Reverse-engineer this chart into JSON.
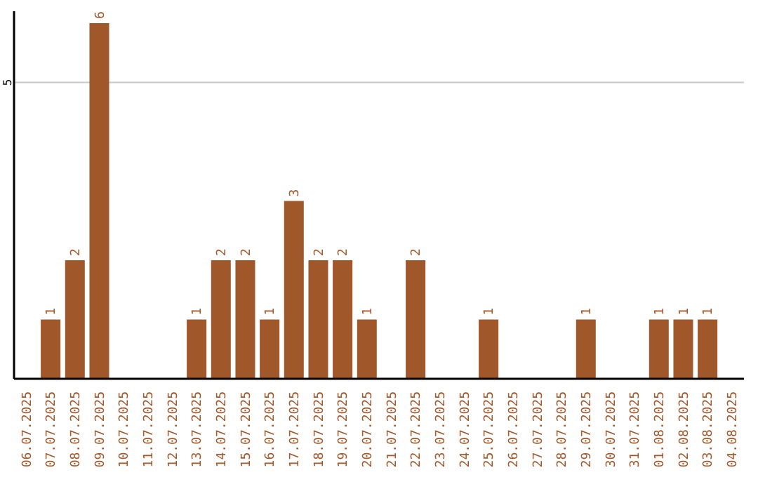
{
  "chart_data": {
    "type": "bar",
    "categories": [
      "06.07.2025",
      "07.07.2025",
      "08.07.2025",
      "09.07.2025",
      "10.07.2025",
      "11.07.2025",
      "12.07.2025",
      "13.07.2025",
      "14.07.2025",
      "15.07.2025",
      "16.07.2025",
      "17.07.2025",
      "18.07.2025",
      "19.07.2025",
      "20.07.2025",
      "21.07.2025",
      "22.07.2025",
      "23.07.2025",
      "24.07.2025",
      "25.07.2025",
      "26.07.2025",
      "27.07.2025",
      "28.07.2025",
      "29.07.2025",
      "30.07.2025",
      "31.07.2025",
      "01.08.2025",
      "02.08.2025",
      "03.08.2025",
      "04.08.2025"
    ],
    "values": [
      0,
      1,
      2,
      6,
      0,
      0,
      0,
      1,
      2,
      2,
      1,
      3,
      2,
      2,
      1,
      0,
      2,
      0,
      0,
      1,
      0,
      0,
      0,
      1,
      0,
      0,
      1,
      1,
      1,
      0
    ],
    "value_labels": [
      null,
      "1",
      "2",
      "6",
      null,
      null,
      null,
      "1",
      "2",
      "2",
      "1",
      "3",
      "2",
      "2",
      "1",
      null,
      "2",
      null,
      null,
      "1",
      null,
      null,
      null,
      "1",
      null,
      null,
      "1",
      "1",
      "1",
      null
    ],
    "color": "#a0572a",
    "ylim": [
      0,
      6.2
    ],
    "yticks": [
      5
    ],
    "grid": "y"
  }
}
